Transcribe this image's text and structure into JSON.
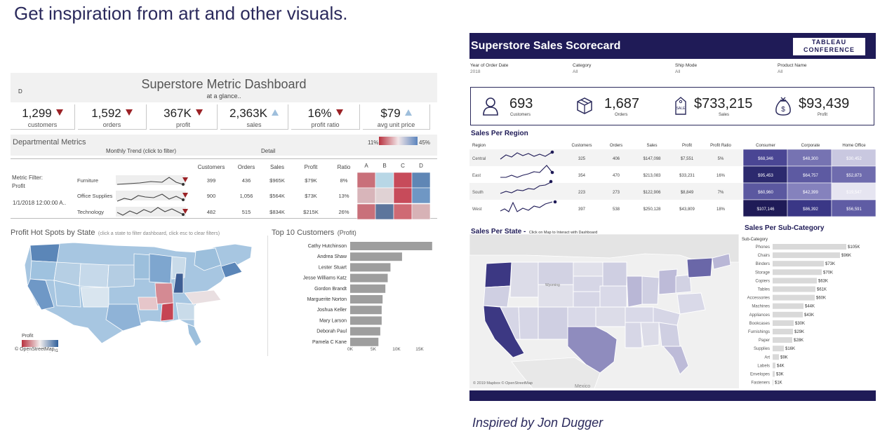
{
  "slide": {
    "title": "Get inspiration from art and other visuals.",
    "credit": "Inspired by Jon Dugger"
  },
  "left_dashboard": {
    "title": "Superstore Metric Dashboard",
    "subtitle": "at a glance..",
    "corner_label": "D",
    "kpis": [
      {
        "value": "1,299",
        "label": "customers",
        "trend": "down"
      },
      {
        "value": "1,592",
        "label": "orders",
        "trend": "down"
      },
      {
        "value": "367K",
        "label": "profit",
        "trend": "down"
      },
      {
        "value": "2,363K",
        "label": "sales",
        "trend": "up"
      },
      {
        "value": "16%",
        "label": "profit ratio",
        "trend": "down"
      },
      {
        "value": "$79",
        "label": "avg unit price",
        "trend": "up"
      }
    ],
    "departmental": {
      "title": "Departmental Metrics",
      "trend_label": "Monthly Trend (click to filter)",
      "detail_label": "Detail",
      "legend_min": "11%",
      "legend_max": "45%",
      "metric_filter_label": "Metric Filter:",
      "metric_filter_value": "Profit",
      "date_value": "1/1/2018 12:00:00 A..",
      "columns": [
        "Customers",
        "Orders",
        "Sales",
        "Profit",
        "Ratio"
      ],
      "segment_columns": [
        "A",
        "B",
        "C",
        "D"
      ],
      "rows": [
        {
          "name": "Furniture",
          "customers": "399",
          "orders": "436",
          "sales": "$965K",
          "profit": "$79K",
          "ratio": "8%",
          "heat": [
            "#c9707a",
            "#b8d7e6",
            "#c74b5a",
            "#5f86b5"
          ]
        },
        {
          "name": "Office Supplies",
          "customers": "900",
          "orders": "1,056",
          "sales": "$564K",
          "profit": "$73K",
          "ratio": "13%",
          "heat": [
            "#d8b5ba",
            "#e0d2d4",
            "#c74b5a",
            "#6f97c4"
          ]
        },
        {
          "name": "Technology",
          "customers": "482",
          "orders": "515",
          "sales": "$834K",
          "profit": "$215K",
          "ratio": "26%",
          "heat": [
            "#c9707a",
            "#5d759c",
            "#cf6a74",
            "#d7b2b6"
          ]
        }
      ]
    },
    "map": {
      "title": "Profit Hot Spots by State",
      "subtitle": "(click a state to filter dashboard, click esc to clear filters)",
      "legend_title": "Profit",
      "legend_min": "-15,052",
      "legend_max": "50,291",
      "credit": "© OpenStreetMap"
    },
    "customers": {
      "title": "Top 10 Customers",
      "title_suffix": "(Profit)",
      "names": [
        "Cathy Hutchinson",
        "Andrea Shaw",
        "Lester Stuart",
        "Jesse Williams Katz",
        "Gordon Brandt",
        "Marguerite Norton",
        "Joshua Keller",
        "Mary Larson",
        "Deborah Paul",
        "Pamela C Kane"
      ],
      "values": [
        17.7,
        11.2,
        8.7,
        8.1,
        7.6,
        7.0,
        6.8,
        6.8,
        6.5,
        6.1
      ],
      "ticks": [
        "0K",
        "5K",
        "10K",
        "15K"
      ],
      "bar_color": "#9e9e9e"
    }
  },
  "right_dashboard": {
    "title": "Superstore Sales Scorecard",
    "logo_line1": "TABLEAU",
    "logo_line2": "CONFERENCE",
    "filters": [
      {
        "label": "Year of Order Date",
        "value": "2018"
      },
      {
        "label": "Category",
        "value": "All"
      },
      {
        "label": "Ship Mode",
        "value": "All"
      },
      {
        "label": "Product Name",
        "value": "All"
      }
    ],
    "scorecard": [
      {
        "value": "693",
        "label": "Customers",
        "icon": "person-icon"
      },
      {
        "value": "1,687",
        "label": "Orders",
        "icon": "box-icon"
      },
      {
        "value": "$733,215",
        "label": "Sales",
        "icon": "sale-tag-icon"
      },
      {
        "value": "$93,439",
        "label": "Profit",
        "icon": "money-bag-icon"
      }
    ],
    "region": {
      "title": "Sales Per Region",
      "columns": [
        "Region",
        "Customers",
        "Orders",
        "Sales",
        "Profit",
        "Profit Ratio",
        "Consumer",
        "Corporate",
        "Home Office"
      ],
      "rows": [
        {
          "region": "Central",
          "customers": "325",
          "orders": "406",
          "sales": "$147,098",
          "profit": "$7,551",
          "ratio": "5%",
          "consumer": "$68,346",
          "corporate": "$48,300",
          "home": "$30,452",
          "colors": [
            "#4a4694",
            "#7673b2",
            "#c9c8e0"
          ]
        },
        {
          "region": "East",
          "customers": "354",
          "orders": "470",
          "sales": "$213,083",
          "profit": "$33,231",
          "ratio": "16%",
          "consumer": "$95,453",
          "corporate": "$64,757",
          "home": "$52,873",
          "colors": [
            "#2c2a6e",
            "#5d5aa2",
            "#6f6cae"
          ]
        },
        {
          "region": "South",
          "customers": "223",
          "orders": "273",
          "sales": "$122,906",
          "profit": "$8,849",
          "ratio": "7%",
          "consumer": "$60,960",
          "corporate": "$42,399",
          "home": "$19,547",
          "colors": [
            "#5b58a0",
            "#8582bd",
            "#e6e5f1"
          ]
        },
        {
          "region": "West",
          "customers": "397",
          "orders": "538",
          "sales": "$250,128",
          "profit": "$43,809",
          "ratio": "18%",
          "consumer": "$107,146",
          "corporate": "$86,392",
          "home": "$56,591",
          "colors": [
            "#1f1b57",
            "#3a3786",
            "#5f5ca4"
          ]
        }
      ]
    },
    "map": {
      "title": "Sales Per State -",
      "subtitle": "Click on Map to Interact with Dashboard",
      "credit": "© 2019 Mapbox © OpenStreetMap",
      "state_label": "Wyoming",
      "country_label": "Mexico"
    },
    "subcategory": {
      "title": "Sales Per Sub-Category",
      "axis_label": "Sub-Category",
      "names": [
        "Phones",
        "Chairs",
        "Binders",
        "Storage",
        "Copiers",
        "Tables",
        "Accessories",
        "Machines",
        "Appliances",
        "Bookcases",
        "Furnishings",
        "Paper",
        "Supplies",
        "Art",
        "Labels",
        "Envelopes",
        "Fasteners"
      ],
      "values": [
        105,
        96,
        73,
        70,
        63,
        61,
        60,
        44,
        43,
        30,
        29,
        28,
        16,
        9,
        4,
        3,
        1
      ],
      "labels": [
        "$105K",
        "$96K",
        "$73K",
        "$70K",
        "$63K",
        "$61K",
        "$60K",
        "$44K",
        "$43K",
        "$30K",
        "$29K",
        "$28K",
        "$16K",
        "$9K",
        "$4K",
        "$3K",
        "$1K"
      ],
      "bar_color": "#d9d9d9"
    }
  }
}
